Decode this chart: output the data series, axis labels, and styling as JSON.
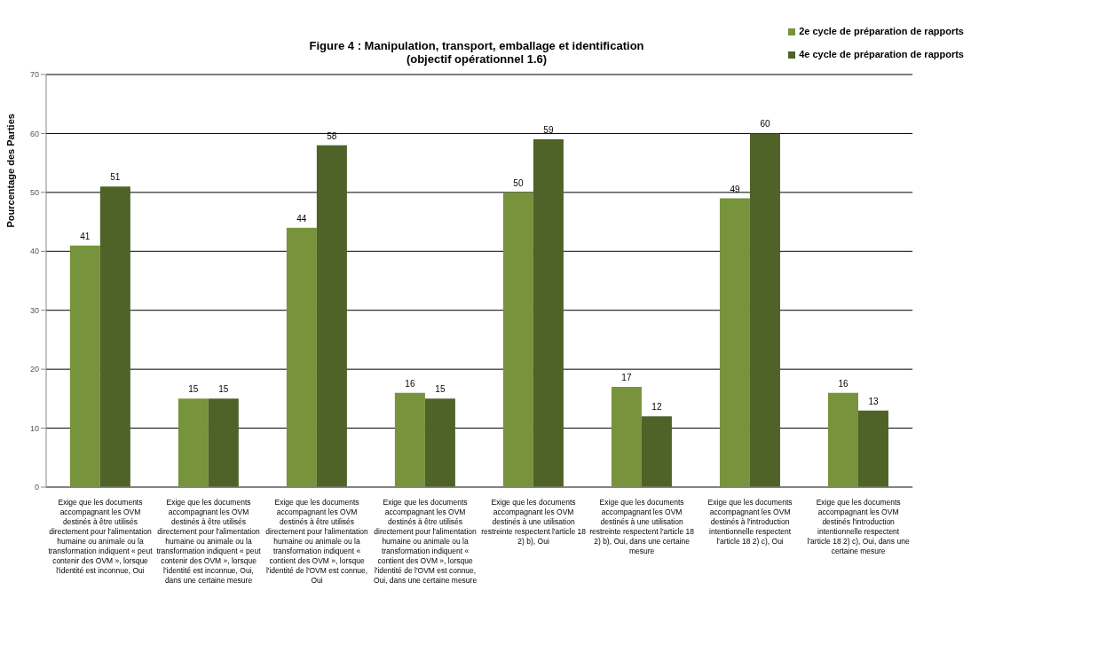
{
  "chart_data": {
    "type": "bar",
    "title": "Figure 4 : Manipulation, transport, emballage et identification",
    "subtitle": "(objectif opérationnel 1.6)",
    "ylabel": "Pourcentage des Parties",
    "categories": [
      "Exige que les documents accompagnant les OVM destinés à être utilisés directement pour l'alimentation humaine ou animale ou la transformation indiquent « peut contenir des OVM », lorsque l'identité est inconnue, Oui",
      "Exige que les documents accompagnant les OVM destinés à être utilisés directement pour l'alimentation humaine ou animale ou la transformation indiquent « peut contenir des OVM », lorsque l'identité est inconnue, Oui, dans une certaine mesure",
      "Exige que les documents accompagnant les OVM destinés à être utilisés directement pour l'alimentation humaine ou animale ou la transformation indiquent « contient des OVM », lorsque l'identité de l'OVM est connue, Oui",
      "Exige que les documents accompagnant les OVM destinés à être utilisés directement pour l'alimentation humaine ou animale ou la transformation indiquent « contient des OVM », lorsque l'identité de l'OVM est connue, Oui, dans une certaine mesure",
      "Exige que les documents accompagnant les OVM destinés à une utilisation restreinte respectent l'article 18 2) b), Oui",
      "Exige que les documents accompagnant les OVM destinés à une utilisation restreinte respectent l'article 18 2) b), Oui, dans une certaine mesure",
      "Exige que les documents accompagnant les OVM destinés à l'introduction intentionnelle respectent l'article 18 2) c), Oui",
      "Exige que les documents accompagnant les OVM destinés l'introduction intentionnelle respectent l'article 18 2) c), Oui, dans une certaine mesure"
    ],
    "series": [
      {
        "name": "2e cycle de préparation de rapports",
        "color": "#77933c",
        "values": [
          41,
          15,
          44,
          16,
          50,
          17,
          49,
          16
        ]
      },
      {
        "name": "4e cycle de préparation de rapports",
        "color": "#4f6228",
        "values": [
          51,
          15,
          58,
          15,
          59,
          12,
          60,
          13
        ]
      }
    ],
    "ylim": [
      0,
      70
    ],
    "yticks": [
      0,
      10,
      20,
      30,
      40,
      50,
      60,
      70
    ],
    "grid": "y",
    "legend": "top right",
    "data_labels": true
  }
}
